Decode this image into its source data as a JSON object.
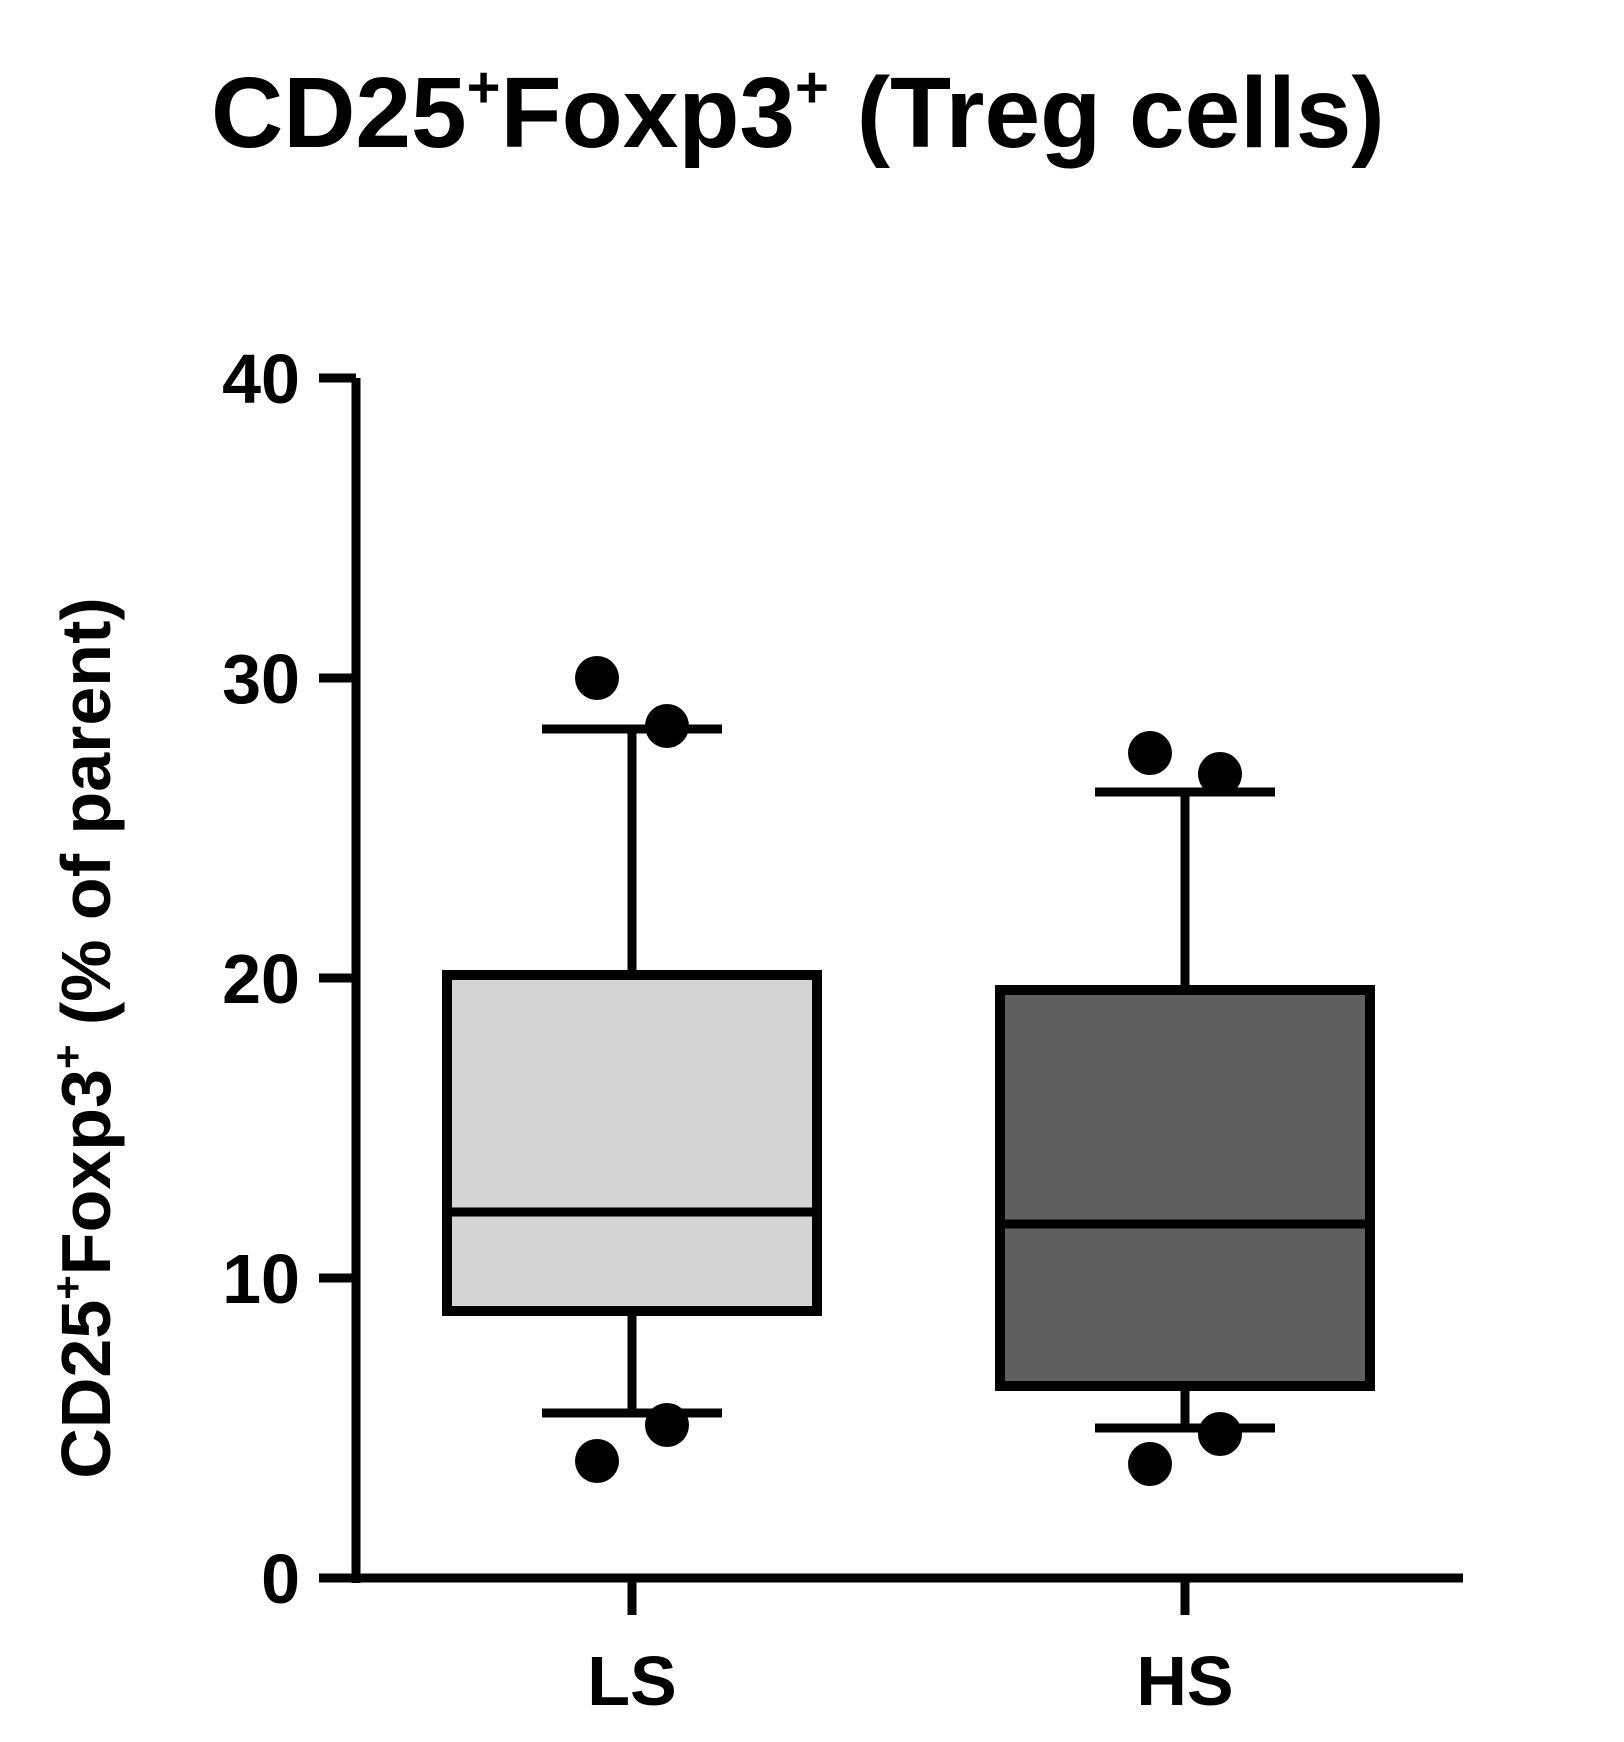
{
  "chart_data": {
    "type": "box",
    "title": {
      "main1": "CD25",
      "sup1": "+",
      "main2": "Foxp3",
      "sup2": "+",
      "rest": " (Treg cells)"
    },
    "ylabel": {
      "main1": "CD25",
      "sup1": "+",
      "main2": "Foxp3",
      "sup2": "+",
      "rest": " (% of parent)"
    },
    "xlabel": "",
    "ylim": [
      0,
      40
    ],
    "yticks": [
      0,
      10,
      20,
      30,
      40
    ],
    "categories": [
      "LS",
      "HS"
    ],
    "boxes": [
      {
        "category": "LS",
        "whisker_low": 5.5,
        "q1": 8.9,
        "median": 12.2,
        "q3": 20.1,
        "whisker_high": 28.3,
        "points": [
          30.0,
          28.4,
          5.1,
          3.9
        ],
        "fill": "#d4d4d4"
      },
      {
        "category": "HS",
        "whisker_low": 5.0,
        "q1": 6.4,
        "median": 11.8,
        "q3": 19.6,
        "whisker_high": 26.2,
        "points": [
          27.5,
          26.8,
          4.8,
          3.8
        ],
        "fill": "#5f5f5f"
      }
    ]
  }
}
